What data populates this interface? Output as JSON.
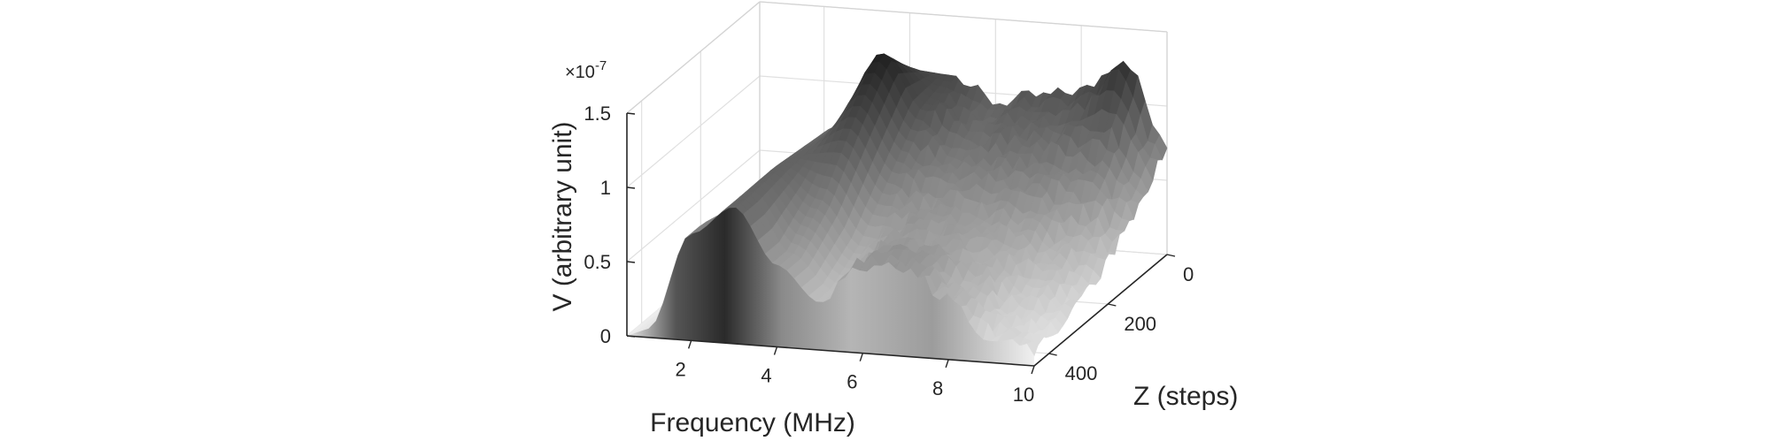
{
  "chart_data": {
    "type": "surface",
    "title": "",
    "xlabel": "Frequency (MHz)",
    "ylabel": "Z (steps)",
    "zlabel": "V (arbitrary unit)",
    "z_exponent": "×10",
    "z_exponent_power": "-7",
    "xlim": [
      0.5,
      10
    ],
    "ylim": [
      0,
      450
    ],
    "zlim": [
      0,
      1.5
    ],
    "xticks": [
      2,
      4,
      6,
      8,
      10
    ],
    "xtick_labels": [
      "2",
      "4",
      "6",
      "8",
      "10"
    ],
    "yticks": [
      0,
      200,
      400
    ],
    "ytick_labels": [
      "0",
      "200",
      "400"
    ],
    "zticks": [
      0,
      0.5,
      1,
      1.5
    ],
    "ztick_labels": [
      "0",
      "0.5",
      "1",
      "1.5"
    ],
    "colormap": "gray",
    "grid": true,
    "series": [
      {
        "z_step": 0,
        "frequency_mhz": [
          1,
          2,
          3,
          4,
          5,
          6,
          7,
          8,
          9,
          10
        ],
        "v_e7": [
          0.02,
          0.2,
          0.62,
          1.12,
          1.1,
          0.94,
          1.0,
          1.06,
          1.3,
          0.72
        ]
      },
      {
        "z_step": 100,
        "frequency_mhz": [
          1,
          2,
          3,
          4,
          5,
          6,
          7,
          8,
          9,
          10
        ],
        "v_e7": [
          0.03,
          0.3,
          0.9,
          1.4,
          1.02,
          0.84,
          0.86,
          0.82,
          0.74,
          0.5
        ]
      },
      {
        "z_step": 200,
        "frequency_mhz": [
          1,
          2,
          3,
          4,
          5,
          6,
          7,
          8,
          9,
          10
        ],
        "v_e7": [
          0.04,
          0.48,
          0.92,
          1.1,
          0.74,
          0.62,
          0.6,
          0.56,
          0.44,
          0.28
        ]
      },
      {
        "z_step": 300,
        "frequency_mhz": [
          1,
          2,
          3,
          4,
          5,
          6,
          7,
          8,
          9,
          10
        ],
        "v_e7": [
          0.05,
          0.66,
          0.94,
          0.76,
          0.46,
          0.56,
          0.52,
          0.42,
          0.28,
          0.16
        ]
      },
      {
        "z_step": 400,
        "frequency_mhz": [
          1,
          2,
          3,
          4,
          5,
          6,
          7,
          8,
          9,
          10
        ],
        "v_e7": [
          0.06,
          0.72,
          0.92,
          0.55,
          0.32,
          0.6,
          0.58,
          0.4,
          0.18,
          0.1
        ]
      }
    ]
  }
}
